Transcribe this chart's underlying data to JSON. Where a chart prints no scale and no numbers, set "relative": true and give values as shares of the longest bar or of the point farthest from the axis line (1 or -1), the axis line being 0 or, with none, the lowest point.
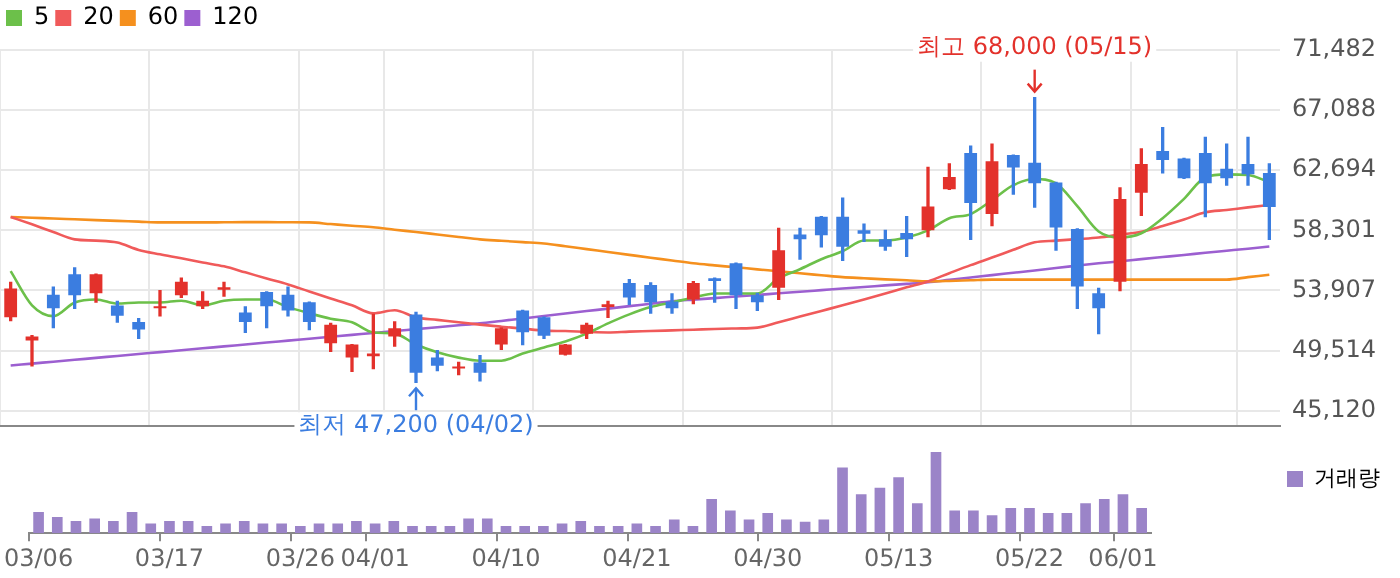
{
  "chart_data": [
    {
      "type": "candlestick",
      "categories": [
        null,
        null,
        null,
        null,
        null,
        null,
        null,
        null,
        null,
        null,
        null,
        null,
        null,
        null,
        null,
        null,
        null,
        null,
        null,
        null,
        null,
        null,
        null,
        null,
        null,
        null,
        null,
        null,
        null,
        null,
        null,
        null,
        null,
        null,
        null,
        null,
        null,
        null,
        null,
        null,
        null,
        null,
        null,
        null,
        null,
        null,
        null,
        null,
        null,
        null,
        null,
        null,
        null,
        null,
        null,
        null,
        null,
        null,
        null,
        null
      ],
      "ohlc": [
        [
          51950,
          54500,
          51700,
          54050
        ],
        [
          50250,
          50600,
          48400,
          50550
        ],
        [
          53600,
          54150,
          51200,
          52600
        ],
        [
          55100,
          55550,
          52600,
          53550
        ],
        [
          53700,
          55100,
          53050,
          55100
        ],
        [
          52800,
          53100,
          51600,
          52050
        ],
        [
          51600,
          51850,
          50400,
          51050
        ],
        [
          52600,
          53900,
          52050,
          52750
        ],
        [
          53550,
          54800,
          53400,
          54550
        ],
        [
          52750,
          53800,
          52600,
          53150
        ],
        [
          53950,
          54500,
          53500,
          54150
        ],
        [
          52300,
          52700,
          50850,
          51600
        ],
        [
          53800,
          53800,
          51200,
          52750
        ],
        [
          53600,
          54150,
          52050,
          52450
        ],
        [
          53050,
          53050,
          51050,
          51600
        ],
        [
          50050,
          51500,
          49450,
          51400
        ],
        [
          49000,
          49950,
          48000,
          49950
        ],
        [
          49100,
          52150,
          48200,
          49300
        ],
        [
          50550,
          51600,
          49850,
          51150
        ],
        [
          52150,
          52300,
          47200,
          47900
        ],
        [
          49000,
          49500,
          48050,
          48400
        ],
        [
          48200,
          48650,
          47750,
          48300
        ],
        [
          48650,
          49150,
          47300,
          47900
        ],
        [
          49950,
          51150,
          49600,
          51150
        ],
        [
          52450,
          52450,
          49950,
          50850
        ],
        [
          51950,
          51950,
          50400,
          50600
        ],
        [
          49200,
          49950,
          49200,
          49950
        ],
        [
          50750,
          51500,
          50400,
          51400
        ],
        [
          52700,
          53100,
          51950,
          52900
        ],
        [
          54450,
          54700,
          52900,
          53400
        ],
        [
          54300,
          54450,
          52250,
          53050
        ],
        [
          53100,
          53650,
          52250,
          52600
        ],
        [
          53250,
          54550,
          52950,
          54450
        ],
        [
          54800,
          54800,
          53050,
          54600
        ],
        [
          55900,
          55900,
          52600,
          53550
        ],
        [
          53550,
          53700,
          52450,
          53050
        ],
        [
          54100,
          58450,
          53250,
          56850
        ],
        [
          58000,
          58450,
          56200,
          57650
        ],
        [
          59300,
          59300,
          57100,
          57950
        ],
        [
          59300,
          60650,
          56100,
          57100
        ],
        [
          58300,
          58750,
          57500,
          58050
        ],
        [
          57650,
          58300,
          56850,
          57100
        ],
        [
          58100,
          59300,
          56400,
          57650
        ],
        [
          58300,
          62900,
          57850,
          60050
        ],
        [
          61300,
          63150,
          61300,
          62200
        ],
        [
          63950,
          64450,
          57650,
          60300
        ],
        [
          59500,
          64600,
          58650,
          63350
        ],
        [
          63800,
          63800,
          60950,
          62900
        ],
        [
          63250,
          68000,
          60000,
          61750
        ],
        [
          61800,
          61800,
          56850,
          58500
        ],
        [
          58400,
          58400,
          52600,
          54200
        ],
        [
          53700,
          54050,
          50750,
          52600
        ],
        [
          54550,
          61400,
          53900,
          60600
        ],
        [
          61050,
          64250,
          59400,
          63150
        ],
        [
          64100,
          65800,
          62500,
          63450
        ],
        [
          63550,
          63550,
          62100,
          62100
        ],
        [
          63950,
          65100,
          59300,
          61750
        ],
        [
          62800,
          64600,
          61600,
          62100
        ],
        [
          63150,
          65100,
          61600,
          62400
        ],
        [
          62500,
          63150,
          57650,
          60000
        ]
      ],
      "colors": [
        "#e3312b",
        "#e3312b",
        "#3b7de0",
        "#3b7de0",
        "#e3312b",
        "#3b7de0",
        "#3b7de0",
        "#e3312b",
        "#e3312b",
        "#e3312b",
        "#e3312b",
        "#3b7de0",
        "#3b7de0",
        "#3b7de0",
        "#3b7de0",
        "#e3312b",
        "#e3312b",
        "#e3312b",
        "#e3312b",
        "#3b7de0",
        "#3b7de0",
        "#e3312b",
        "#3b7de0",
        "#e3312b",
        "#3b7de0",
        "#3b7de0",
        "#e3312b",
        "#e3312b",
        "#e3312b",
        "#3b7de0",
        "#3b7de0",
        "#3b7de0",
        "#e3312b",
        "#3b7de0",
        "#3b7de0",
        "#3b7de0",
        "#e3312b",
        "#3b7de0",
        "#3b7de0",
        "#3b7de0",
        "#3b7de0",
        "#3b7de0",
        "#3b7de0",
        "#e3312b",
        "#e3312b",
        "#3b7de0",
        "#e3312b",
        "#3b7de0",
        "#3b7de0",
        "#3b7de0",
        "#3b7de0",
        "#3b7de0",
        "#e3312b",
        "#e3312b",
        "#3b7de0",
        "#3b7de0",
        "#3b7de0",
        "#3b7de0",
        "#3b7de0",
        "#3b7de0"
      ],
      "series": [
        {
          "type": "line",
          "name": "5",
          "color": "#6cc04a",
          "values": [
            55320,
            52820,
            52030,
            53030,
            53250,
            52950,
            53030,
            53030,
            53160,
            52820,
            53160,
            53250,
            53250,
            52690,
            52240,
            51840,
            51580,
            50840,
            50750,
            49960,
            49390,
            49000,
            48770,
            48770,
            49300,
            49740,
            50180,
            50750,
            51500,
            52160,
            52690,
            53030,
            53390,
            53690,
            53690,
            53690,
            54800,
            55460,
            56190,
            56770,
            57560,
            57560,
            57780,
            58300,
            59190,
            59490,
            60500,
            61600,
            62050,
            61730,
            60070,
            58220,
            57780,
            58090,
            59190,
            60600,
            62180,
            62390,
            62350,
            61820
          ]
        },
        {
          "type": "line",
          "name": "20",
          "color": "#f05a5a",
          "values": [
            59280,
            58740,
            58180,
            57640,
            57550,
            57410,
            56870,
            56550,
            56260,
            55950,
            55670,
            55230,
            54780,
            54350,
            53830,
            53320,
            52820,
            52240,
            52460,
            51940,
            51760,
            51580,
            51410,
            51260,
            51120,
            50970,
            50940,
            50880,
            50840,
            50900,
            50940,
            50990,
            51040,
            51090,
            51130,
            51190,
            51590,
            52000,
            52410,
            52820,
            53250,
            53690,
            54140,
            54570,
            55170,
            55760,
            56310,
            56880,
            57430,
            57550,
            57660,
            57780,
            57990,
            58200,
            58620,
            59090,
            59620,
            59790,
            59980,
            60150
          ]
        },
        {
          "type": "line",
          "name": "60",
          "color": "#f5901e",
          "values": [
            59280,
            59220,
            59170,
            59110,
            59050,
            58990,
            58940,
            58880,
            58880,
            58880,
            58890,
            58900,
            58900,
            58890,
            58880,
            58760,
            58640,
            58530,
            58350,
            58180,
            58000,
            57820,
            57640,
            57540,
            57440,
            57340,
            57140,
            56930,
            56720,
            56510,
            56300,
            56100,
            55890,
            55740,
            55600,
            55450,
            55310,
            55160,
            55020,
            54880,
            54800,
            54720,
            54650,
            54570,
            54600,
            54650,
            54700,
            54700,
            54700,
            54700,
            54700,
            54700,
            54700,
            54700,
            54700,
            54700,
            54700,
            54700,
            54880,
            55060
          ]
        },
        {
          "type": "line",
          "name": "120",
          "color": "#9c5fd0",
          "values": [
            48420,
            48560,
            48700,
            48840,
            48980,
            49120,
            49260,
            49400,
            49540,
            49680,
            49820,
            49960,
            50100,
            50240,
            50380,
            50520,
            50660,
            50800,
            50940,
            51080,
            51220,
            51360,
            51500,
            51680,
            51860,
            52040,
            52220,
            52400,
            52580,
            52760,
            52940,
            53120,
            53240,
            53350,
            53470,
            53580,
            53700,
            53810,
            53930,
            54050,
            54160,
            54280,
            54390,
            54510,
            54680,
            54850,
            55030,
            55200,
            55370,
            55550,
            55720,
            55890,
            56040,
            56200,
            56350,
            56500,
            56660,
            56810,
            56960,
            57120
          ]
        }
      ],
      "ylim": [
        44030,
        71482
      ],
      "yticks": [
        {
          "value": 45120,
          "label": "45,120"
        },
        {
          "value": 49514,
          "label": "49,514"
        },
        {
          "value": 53907,
          "label": "53,907"
        },
        {
          "value": 58301,
          "label": "58,301"
        },
        {
          "value": 62694,
          "label": "62,694"
        },
        {
          "value": 67088,
          "label": "67,088"
        },
        {
          "value": 71482,
          "label": "71,482"
        }
      ],
      "grid": true,
      "legend": "top left",
      "tick_labels": "y",
      "annotations": [
        {
          "text": "최고 68,000 (05/15)",
          "y": 68000
        },
        {
          "text": "최저 47,200 (04/02)",
          "y": 47200
        }
      ]
    },
    {
      "type": "bar",
      "categories": [
        "03/06",
        null,
        null,
        null,
        null,
        null,
        null,
        "03/17",
        null,
        null,
        null,
        null,
        null,
        null,
        "03/26",
        null,
        null,
        null,
        "04/01",
        null,
        null,
        null,
        null,
        null,
        null,
        "04/10",
        null,
        null,
        null,
        null,
        null,
        null,
        "04/21",
        null,
        null,
        null,
        null,
        null,
        null,
        "04/30",
        null,
        null,
        null,
        null,
        null,
        null,
        "05/13",
        null,
        null,
        null,
        null,
        null,
        null,
        "05/22",
        null,
        null,
        null,
        null,
        "06/01",
        null
      ],
      "series": [
        {
          "name": "거래량",
          "color": "#9b84c8",
          "values": [
            0.26,
            0.2,
            0.15,
            0.18,
            0.15,
            0.26,
            0.12,
            0.15,
            0.15,
            0.09,
            0.12,
            0.15,
            0.12,
            0.12,
            0.09,
            0.12,
            0.12,
            0.15,
            0.12,
            0.15,
            0.09,
            0.09,
            0.09,
            0.18,
            0.18,
            0.09,
            0.09,
            0.09,
            0.12,
            0.15,
            0.09,
            0.09,
            0.12,
            0.09,
            0.17,
            0.09,
            0.42,
            0.28,
            0.17,
            0.25,
            0.17,
            0.14,
            0.17,
            0.81,
            0.48,
            0.56,
            0.69,
            0.37,
            1,
            0.28,
            0.28,
            0.22,
            0.31,
            0.31,
            0.25,
            0.25,
            0.37,
            0.42,
            0.48,
            0.31
          ]
        }
      ],
      "relative": true,
      "legend": "right",
      "tick_labels": "x"
    }
  ]
}
